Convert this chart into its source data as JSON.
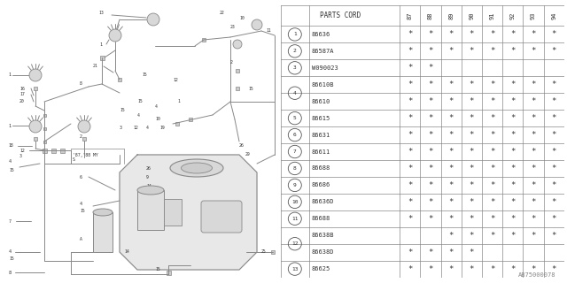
{
  "bg_color": "#ffffff",
  "table_header_years": [
    "87",
    "88",
    "89",
    "90",
    "91",
    "92",
    "93",
    "94"
  ],
  "rows": [
    {
      "num": "1",
      "circle": true,
      "part": "86636",
      "marks": [
        1,
        1,
        1,
        1,
        1,
        1,
        1,
        1
      ],
      "group": "1"
    },
    {
      "num": "2",
      "circle": true,
      "part": "86587A",
      "marks": [
        1,
        1,
        1,
        1,
        1,
        1,
        1,
        1
      ],
      "group": "2"
    },
    {
      "num": "3",
      "circle": true,
      "part": "W090023",
      "marks": [
        1,
        1,
        0,
        0,
        0,
        0,
        0,
        0
      ],
      "group": "3"
    },
    {
      "num": "4",
      "circle": true,
      "part": "86610B",
      "marks": [
        1,
        1,
        1,
        1,
        1,
        1,
        1,
        1
      ],
      "group": "4"
    },
    {
      "num": "4",
      "circle": false,
      "part": "86610",
      "marks": [
        1,
        1,
        1,
        1,
        1,
        1,
        1,
        1
      ],
      "group": "4"
    },
    {
      "num": "5",
      "circle": true,
      "part": "86615",
      "marks": [
        1,
        1,
        1,
        1,
        1,
        1,
        1,
        1
      ],
      "group": "5"
    },
    {
      "num": "6",
      "circle": true,
      "part": "86631",
      "marks": [
        1,
        1,
        1,
        1,
        1,
        1,
        1,
        1
      ],
      "group": "6"
    },
    {
      "num": "7",
      "circle": true,
      "part": "86611",
      "marks": [
        1,
        1,
        1,
        1,
        1,
        1,
        1,
        1
      ],
      "group": "7"
    },
    {
      "num": "8",
      "circle": true,
      "part": "86688",
      "marks": [
        1,
        1,
        1,
        1,
        1,
        1,
        1,
        1
      ],
      "group": "8"
    },
    {
      "num": "9",
      "circle": true,
      "part": "86686",
      "marks": [
        1,
        1,
        1,
        1,
        1,
        1,
        1,
        1
      ],
      "group": "9"
    },
    {
      "num": "10",
      "circle": true,
      "part": "86636D",
      "marks": [
        1,
        1,
        1,
        1,
        1,
        1,
        1,
        1
      ],
      "group": "10"
    },
    {
      "num": "11",
      "circle": true,
      "part": "86688",
      "marks": [
        1,
        1,
        1,
        1,
        1,
        1,
        1,
        1
      ],
      "group": "11"
    },
    {
      "num": "12",
      "circle": true,
      "part": "86638B",
      "marks": [
        0,
        0,
        1,
        1,
        1,
        1,
        1,
        1
      ],
      "group": "12"
    },
    {
      "num": "12",
      "circle": false,
      "part": "86638D",
      "marks": [
        1,
        1,
        1,
        1,
        0,
        0,
        0,
        0
      ],
      "group": "12"
    },
    {
      "num": "13",
      "circle": true,
      "part": "86625",
      "marks": [
        1,
        1,
        1,
        1,
        1,
        1,
        1,
        1
      ],
      "group": "13"
    }
  ],
  "watermark": "AB75000078"
}
